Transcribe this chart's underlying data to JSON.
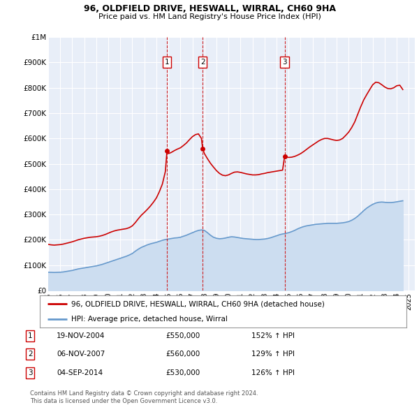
{
  "title": "96, OLDFIELD DRIVE, HESWALL, WIRRAL, CH60 9HA",
  "subtitle": "Price paid vs. HM Land Registry's House Price Index (HPI)",
  "legend_property": "96, OLDFIELD DRIVE, HESWALL, WIRRAL, CH60 9HA (detached house)",
  "legend_hpi": "HPI: Average price, detached house, Wirral",
  "footer1": "Contains HM Land Registry data © Crown copyright and database right 2024.",
  "footer2": "This data is licensed under the Open Government Licence v3.0.",
  "transactions": [
    {
      "num": 1,
      "date": "19-NOV-2004",
      "price": 550000,
      "pct": "152%",
      "x_year": 2004.88
    },
    {
      "num": 2,
      "date": "06-NOV-2007",
      "price": 560000,
      "pct": "129%",
      "x_year": 2007.85
    },
    {
      "num": 3,
      "date": "04-SEP-2014",
      "price": 530000,
      "pct": "126%",
      "x_year": 2014.67
    }
  ],
  "property_color": "#cc0000",
  "hpi_color": "#6699cc",
  "hpi_fill_color": "#ccddf0",
  "background_color": "#ffffff",
  "plot_bg": "#e8eef8",
  "ylim": [
    0,
    1000000
  ],
  "yticks": [
    0,
    100000,
    200000,
    300000,
    400000,
    500000,
    600000,
    700000,
    800000,
    900000,
    1000000
  ],
  "ytick_labels": [
    "£0",
    "£100K",
    "£200K",
    "£300K",
    "£400K",
    "£500K",
    "£600K",
    "£700K",
    "£800K",
    "£900K",
    "£1M"
  ],
  "xlim_start": 1995.0,
  "xlim_end": 2025.5,
  "hpi_data": [
    [
      1995.0,
      72000
    ],
    [
      1995.25,
      71500
    ],
    [
      1995.5,
      71000
    ],
    [
      1995.75,
      71500
    ],
    [
      1996.0,
      72000
    ],
    [
      1996.25,
      73000
    ],
    [
      1996.5,
      75000
    ],
    [
      1996.75,
      77000
    ],
    [
      1997.0,
      79000
    ],
    [
      1997.25,
      82000
    ],
    [
      1997.5,
      85000
    ],
    [
      1997.75,
      87000
    ],
    [
      1998.0,
      89000
    ],
    [
      1998.25,
      91000
    ],
    [
      1998.5,
      93000
    ],
    [
      1998.75,
      95000
    ],
    [
      1999.0,
      97000
    ],
    [
      1999.25,
      100000
    ],
    [
      1999.5,
      103000
    ],
    [
      1999.75,
      107000
    ],
    [
      2000.0,
      111000
    ],
    [
      2000.25,
      115000
    ],
    [
      2000.5,
      119000
    ],
    [
      2000.75,
      123000
    ],
    [
      2001.0,
      127000
    ],
    [
      2001.25,
      131000
    ],
    [
      2001.5,
      135000
    ],
    [
      2001.75,
      140000
    ],
    [
      2002.0,
      146000
    ],
    [
      2002.25,
      155000
    ],
    [
      2002.5,
      163000
    ],
    [
      2002.75,
      170000
    ],
    [
      2003.0,
      175000
    ],
    [
      2003.25,
      180000
    ],
    [
      2003.5,
      184000
    ],
    [
      2003.75,
      187000
    ],
    [
      2004.0,
      190000
    ],
    [
      2004.25,
      194000
    ],
    [
      2004.5,
      198000
    ],
    [
      2004.75,
      201000
    ],
    [
      2005.0,
      203000
    ],
    [
      2005.25,
      205000
    ],
    [
      2005.5,
      207000
    ],
    [
      2005.75,
      208000
    ],
    [
      2006.0,
      210000
    ],
    [
      2006.25,
      214000
    ],
    [
      2006.5,
      218000
    ],
    [
      2006.75,
      223000
    ],
    [
      2007.0,
      228000
    ],
    [
      2007.25,
      233000
    ],
    [
      2007.5,
      237000
    ],
    [
      2007.75,
      239000
    ],
    [
      2008.0,
      237000
    ],
    [
      2008.25,
      228000
    ],
    [
      2008.5,
      218000
    ],
    [
      2008.75,
      210000
    ],
    [
      2009.0,
      206000
    ],
    [
      2009.25,
      204000
    ],
    [
      2009.5,
      205000
    ],
    [
      2009.75,
      207000
    ],
    [
      2010.0,
      210000
    ],
    [
      2010.25,
      212000
    ],
    [
      2010.5,
      211000
    ],
    [
      2010.75,
      209000
    ],
    [
      2011.0,
      207000
    ],
    [
      2011.25,
      205000
    ],
    [
      2011.5,
      204000
    ],
    [
      2011.75,
      203000
    ],
    [
      2012.0,
      202000
    ],
    [
      2012.25,
      201000
    ],
    [
      2012.5,
      201000
    ],
    [
      2012.75,
      202000
    ],
    [
      2013.0,
      203000
    ],
    [
      2013.25,
      205000
    ],
    [
      2013.5,
      208000
    ],
    [
      2013.75,
      212000
    ],
    [
      2014.0,
      216000
    ],
    [
      2014.25,
      220000
    ],
    [
      2014.5,
      223000
    ],
    [
      2014.75,
      225000
    ],
    [
      2015.0,
      228000
    ],
    [
      2015.25,
      232000
    ],
    [
      2015.5,
      237000
    ],
    [
      2015.75,
      243000
    ],
    [
      2016.0,
      248000
    ],
    [
      2016.25,
      252000
    ],
    [
      2016.5,
      255000
    ],
    [
      2016.75,
      257000
    ],
    [
      2017.0,
      259000
    ],
    [
      2017.25,
      261000
    ],
    [
      2017.5,
      262000
    ],
    [
      2017.75,
      263000
    ],
    [
      2018.0,
      264000
    ],
    [
      2018.25,
      265000
    ],
    [
      2018.5,
      265000
    ],
    [
      2018.75,
      265000
    ],
    [
      2019.0,
      265000
    ],
    [
      2019.25,
      266000
    ],
    [
      2019.5,
      267000
    ],
    [
      2019.75,
      269000
    ],
    [
      2020.0,
      272000
    ],
    [
      2020.25,
      277000
    ],
    [
      2020.5,
      284000
    ],
    [
      2020.75,
      293000
    ],
    [
      2021.0,
      304000
    ],
    [
      2021.25,
      315000
    ],
    [
      2021.5,
      325000
    ],
    [
      2021.75,
      333000
    ],
    [
      2022.0,
      340000
    ],
    [
      2022.25,
      345000
    ],
    [
      2022.5,
      348000
    ],
    [
      2022.75,
      349000
    ],
    [
      2023.0,
      348000
    ],
    [
      2023.25,
      347000
    ],
    [
      2023.5,
      347000
    ],
    [
      2023.75,
      348000
    ],
    [
      2024.0,
      350000
    ],
    [
      2024.25,
      352000
    ],
    [
      2024.5,
      354000
    ]
  ],
  "property_data": [
    [
      1995.0,
      182000
    ],
    [
      1995.25,
      180000
    ],
    [
      1995.5,
      179000
    ],
    [
      1995.75,
      180000
    ],
    [
      1996.0,
      181000
    ],
    [
      1996.25,
      183000
    ],
    [
      1996.5,
      186000
    ],
    [
      1996.75,
      189000
    ],
    [
      1997.0,
      192000
    ],
    [
      1997.25,
      196000
    ],
    [
      1997.5,
      200000
    ],
    [
      1997.75,
      203000
    ],
    [
      1998.0,
      206000
    ],
    [
      1998.25,
      208000
    ],
    [
      1998.5,
      210000
    ],
    [
      1998.75,
      211000
    ],
    [
      1999.0,
      212000
    ],
    [
      1999.25,
      214000
    ],
    [
      1999.5,
      217000
    ],
    [
      1999.75,
      221000
    ],
    [
      2000.0,
      226000
    ],
    [
      2000.25,
      231000
    ],
    [
      2000.5,
      235000
    ],
    [
      2000.75,
      238000
    ],
    [
      2001.0,
      240000
    ],
    [
      2001.25,
      242000
    ],
    [
      2001.5,
      244000
    ],
    [
      2001.75,
      248000
    ],
    [
      2002.0,
      255000
    ],
    [
      2002.25,
      268000
    ],
    [
      2002.5,
      283000
    ],
    [
      2002.75,
      297000
    ],
    [
      2003.0,
      308000
    ],
    [
      2003.25,
      320000
    ],
    [
      2003.5,
      333000
    ],
    [
      2003.75,
      348000
    ],
    [
      2004.0,
      365000
    ],
    [
      2004.25,
      390000
    ],
    [
      2004.5,
      420000
    ],
    [
      2004.75,
      470000
    ],
    [
      2004.88,
      550000
    ],
    [
      2005.0,
      540000
    ],
    [
      2005.25,
      545000
    ],
    [
      2005.5,
      552000
    ],
    [
      2005.75,
      558000
    ],
    [
      2006.0,
      563000
    ],
    [
      2006.25,
      572000
    ],
    [
      2006.5,
      582000
    ],
    [
      2006.75,
      595000
    ],
    [
      2007.0,
      607000
    ],
    [
      2007.25,
      615000
    ],
    [
      2007.5,
      618000
    ],
    [
      2007.75,
      600000
    ],
    [
      2007.85,
      560000
    ],
    [
      2008.0,
      540000
    ],
    [
      2008.25,
      520000
    ],
    [
      2008.5,
      502000
    ],
    [
      2008.75,
      487000
    ],
    [
      2009.0,
      473000
    ],
    [
      2009.25,
      462000
    ],
    [
      2009.5,
      455000
    ],
    [
      2009.75,
      453000
    ],
    [
      2010.0,
      456000
    ],
    [
      2010.25,
      462000
    ],
    [
      2010.5,
      467000
    ],
    [
      2010.75,
      468000
    ],
    [
      2011.0,
      466000
    ],
    [
      2011.25,
      463000
    ],
    [
      2011.5,
      460000
    ],
    [
      2011.75,
      458000
    ],
    [
      2012.0,
      456000
    ],
    [
      2012.25,
      456000
    ],
    [
      2012.5,
      457000
    ],
    [
      2012.75,
      460000
    ],
    [
      2013.0,
      462000
    ],
    [
      2013.25,
      465000
    ],
    [
      2013.5,
      467000
    ],
    [
      2013.75,
      469000
    ],
    [
      2014.0,
      471000
    ],
    [
      2014.25,
      473000
    ],
    [
      2014.5,
      475000
    ],
    [
      2014.67,
      530000
    ],
    [
      2015.0,
      525000
    ],
    [
      2015.25,
      526000
    ],
    [
      2015.5,
      529000
    ],
    [
      2015.75,
      534000
    ],
    [
      2016.0,
      540000
    ],
    [
      2016.25,
      548000
    ],
    [
      2016.5,
      557000
    ],
    [
      2016.75,
      566000
    ],
    [
      2017.0,
      574000
    ],
    [
      2017.25,
      582000
    ],
    [
      2017.5,
      590000
    ],
    [
      2017.75,
      596000
    ],
    [
      2018.0,
      600000
    ],
    [
      2018.25,
      600000
    ],
    [
      2018.5,
      597000
    ],
    [
      2018.75,
      594000
    ],
    [
      2019.0,
      592000
    ],
    [
      2019.25,
      594000
    ],
    [
      2019.5,
      600000
    ],
    [
      2019.75,
      612000
    ],
    [
      2020.0,
      625000
    ],
    [
      2020.25,
      643000
    ],
    [
      2020.5,
      665000
    ],
    [
      2020.75,
      695000
    ],
    [
      2021.0,
      725000
    ],
    [
      2021.25,
      752000
    ],
    [
      2021.5,
      773000
    ],
    [
      2021.75,
      793000
    ],
    [
      2022.0,
      812000
    ],
    [
      2022.25,
      822000
    ],
    [
      2022.5,
      820000
    ],
    [
      2022.75,
      812000
    ],
    [
      2023.0,
      803000
    ],
    [
      2023.25,
      797000
    ],
    [
      2023.5,
      796000
    ],
    [
      2023.75,
      800000
    ],
    [
      2024.0,
      808000
    ],
    [
      2024.25,
      810000
    ],
    [
      2024.5,
      793000
    ]
  ]
}
